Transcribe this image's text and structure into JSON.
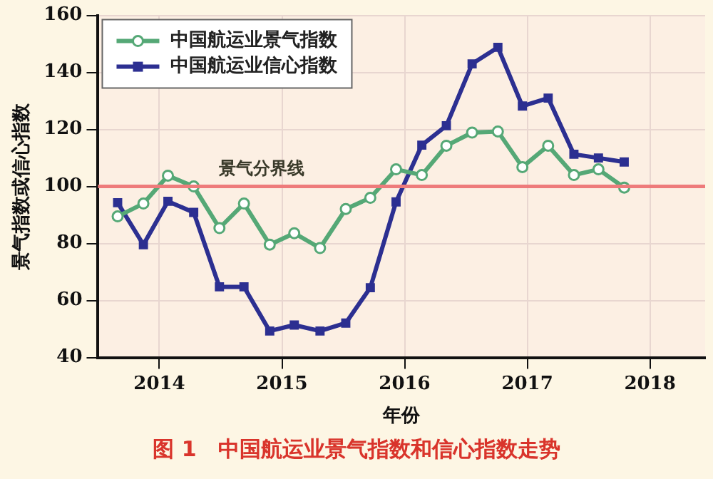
{
  "chart_data": {
    "type": "line",
    "xlabel": "年份",
    "ylabel": "景气指数或信心指数",
    "x": [
      2013.66,
      2013.87,
      2014.07,
      2014.28,
      2014.49,
      2014.69,
      2014.9,
      2015.1,
      2015.31,
      2015.52,
      2015.72,
      2015.93,
      2016.14,
      2016.34,
      2016.55,
      2016.76,
      2016.96,
      2017.17,
      2017.38,
      2017.58,
      2017.79
    ],
    "series": [
      {
        "name": "中国航运业景气指数",
        "color": "#55a876",
        "marker": "circle",
        "values": [
          89.5,
          94,
          103.8,
          100,
          85.4,
          94,
          79.6,
          83.6,
          78.4,
          92.1,
          96,
          106,
          104,
          114.3,
          118.9,
          119.3,
          106.8,
          114.3,
          104,
          106,
          99.6
        ]
      },
      {
        "name": "中国航运业信心指数",
        "color": "#2c2f91",
        "marker": "square",
        "values": [
          94.3,
          79.6,
          94.8,
          90.9,
          64.8,
          64.8,
          49.3,
          51.4,
          49.3,
          52.1,
          64.5,
          94.6,
          114.5,
          121.3,
          143,
          148.8,
          128.2,
          131,
          111.3,
          110,
          108.6
        ]
      }
    ],
    "xlim": [
      2013.5,
      2018.45
    ],
    "xticks": [
      2014,
      2015,
      2016,
      2017,
      2018
    ],
    "ylim": [
      40,
      160
    ],
    "yticks": [
      40,
      60,
      80,
      100,
      120,
      140,
      160
    ],
    "ref_lines": [
      {
        "axis": "y",
        "value": 100,
        "label": "景气分界线",
        "color": "#ee7b7b"
      }
    ],
    "annotations": [
      "图 1　中国航运业景气指数和信心指数走势"
    ],
    "grid": true,
    "legend": "top left"
  }
}
